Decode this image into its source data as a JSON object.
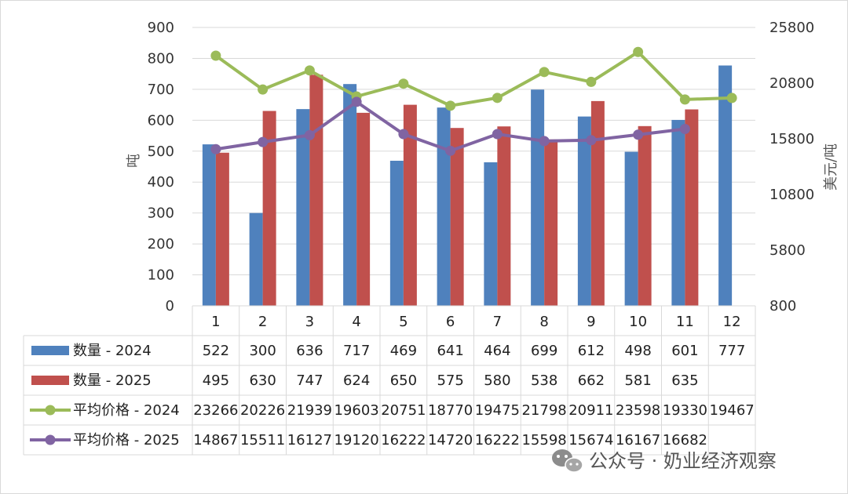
{
  "chart_data": {
    "type": "bar+line",
    "categories": [
      "1",
      "2",
      "3",
      "4",
      "5",
      "6",
      "7",
      "8",
      "9",
      "10",
      "11",
      "12"
    ],
    "left_axis": {
      "label": "吨",
      "ylim": [
        0,
        900
      ],
      "ticks": [
        0,
        100,
        200,
        300,
        400,
        500,
        600,
        700,
        800,
        900
      ]
    },
    "right_axis": {
      "label": "美元/吨",
      "ylim": [
        800,
        25800
      ],
      "ticks": [
        800,
        5800,
        10800,
        15800,
        20800,
        25800
      ]
    },
    "series": [
      {
        "name": "数量 - 2024",
        "type": "bar",
        "axis": "left",
        "color": "#4f81bd",
        "values": [
          522,
          300,
          636,
          717,
          469,
          641,
          464,
          699,
          612,
          498,
          601,
          777
        ]
      },
      {
        "name": "数量 - 2025",
        "type": "bar",
        "axis": "left",
        "color": "#c0504d",
        "values": [
          495,
          630,
          747,
          624,
          650,
          575,
          580,
          538,
          662,
          581,
          635,
          null
        ]
      },
      {
        "name": "平均价格 - 2024",
        "type": "line",
        "axis": "right",
        "color": "#9bbb59",
        "values": [
          23266,
          20226,
          21939,
          19603,
          20751,
          18770,
          19475,
          21798,
          20911,
          23598,
          19330,
          19467
        ]
      },
      {
        "name": "平均价格 - 2025",
        "type": "line",
        "axis": "right",
        "color": "#8064a2",
        "values": [
          14867,
          15511,
          16127,
          19120,
          16222,
          14720,
          16222,
          15598,
          15674,
          16167,
          16682,
          null
        ]
      }
    ],
    "grid": true,
    "legend": "data-table"
  },
  "watermark": {
    "text": "公众号 · 奶业经济观察",
    "icon": "wechat-icon"
  }
}
